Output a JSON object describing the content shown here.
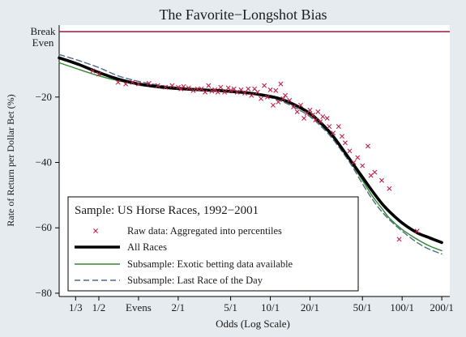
{
  "chart_data": {
    "type": "line",
    "title": "The Favorite−Longshot Bias",
    "xlabel": "Odds (Log Scale)",
    "ylabel": "Rate of Return per Dollar Bet (%)",
    "x_scale": "log",
    "xlim": [
      0.25,
      230
    ],
    "ylim": [
      -81,
      2
    ],
    "x_ticks": [
      {
        "label": "1/3",
        "value": 0.3333
      },
      {
        "label": "1/2",
        "value": 0.5
      },
      {
        "label": "Evens",
        "value": 1
      },
      {
        "label": "2/1",
        "value": 2
      },
      {
        "label": "5/1",
        "value": 5
      },
      {
        "label": "10/1",
        "value": 10
      },
      {
        "label": "20/1",
        "value": 20
      },
      {
        "label": "50/1",
        "value": 50
      },
      {
        "label": "100/1",
        "value": 100
      },
      {
        "label": "200/1",
        "value": 200
      }
    ],
    "y_ticks": [
      {
        "label": "−20",
        "value": -20
      },
      {
        "label": "−40",
        "value": -40
      },
      {
        "label": "−60",
        "value": -60
      },
      {
        "label": "−80",
        "value": -80
      }
    ],
    "reference_line": {
      "value": 0,
      "label_line1": "Break",
      "label_line2": "Even",
      "color": "#a0284f"
    },
    "grid": false,
    "legend": {
      "placement": "bottom-left",
      "title": "Sample: US Horse Races, 1992−2001",
      "entries": [
        {
          "label": "Raw data: Aggregated into percentiles",
          "style": "marker-x",
          "color": "#c0234b"
        },
        {
          "label": "All Races",
          "style": "thick-line",
          "color": "#000000"
        },
        {
          "label": "Subsample: Exotic betting data available",
          "style": "line",
          "color": "#2f8a2f"
        },
        {
          "label": "Subsample: Last Race of the Day",
          "style": "dashed-line",
          "color": "#4c6a8a"
        }
      ]
    },
    "series": [
      {
        "name": "All Races",
        "style": "thick-line",
        "color": "#000000",
        "x": [
          0.25,
          0.35,
          0.5,
          0.7,
          1,
          1.5,
          2,
          3,
          4,
          5,
          7,
          10,
          12,
          15,
          20,
          25,
          30,
          40,
          50,
          60,
          70,
          80,
          100,
          130,
          160,
          200
        ],
        "y": [
          -8,
          -10,
          -12.5,
          -14.5,
          -16,
          -17,
          -17.4,
          -17.8,
          -18,
          -18.3,
          -18.8,
          -19.8,
          -20.6,
          -22.2,
          -25,
          -28.5,
          -32,
          -39,
          -44.5,
          -49,
          -52.5,
          -55,
          -58.5,
          -61.5,
          -63,
          -64.5
        ]
      },
      {
        "name": "Subsample: Exotic betting data available",
        "style": "line",
        "color": "#2f8a2f",
        "x": [
          0.25,
          0.35,
          0.5,
          0.7,
          1,
          1.5,
          2,
          3,
          4,
          5,
          7,
          10,
          12,
          15,
          20,
          25,
          30,
          40,
          50,
          60,
          70,
          80,
          100,
          130,
          160,
          200
        ],
        "y": [
          -9.5,
          -11.5,
          -13.5,
          -15,
          -16.2,
          -17,
          -17.3,
          -17.6,
          -17.8,
          -18.1,
          -18.6,
          -19.8,
          -20.8,
          -22.5,
          -25.5,
          -29,
          -32.5,
          -39.5,
          -45.5,
          -50.5,
          -54,
          -57,
          -60.5,
          -63.5,
          -65.5,
          -67
        ]
      },
      {
        "name": "Subsample: Last Race of the Day",
        "style": "dashed-line",
        "color": "#4c6a8a",
        "x": [
          0.25,
          0.35,
          0.5,
          0.7,
          1,
          1.5,
          2,
          3,
          4,
          5,
          7,
          10,
          12,
          15,
          20,
          25,
          30,
          40,
          50,
          60,
          70,
          80,
          100,
          130,
          160,
          200
        ],
        "y": [
          -7,
          -8.8,
          -11,
          -13.5,
          -15.2,
          -16.5,
          -17,
          -17.6,
          -17.9,
          -18.3,
          -19,
          -20.2,
          -21.2,
          -23,
          -26,
          -29.5,
          -33,
          -40,
          -46.5,
          -51.5,
          -55,
          -57.5,
          -61,
          -64.5,
          -66.5,
          -68
        ]
      },
      {
        "name": "Raw data: Aggregated into percentiles",
        "style": "marker-x",
        "color": "#c0234b",
        "points": [
          [
            0.45,
            -12
          ],
          [
            0.5,
            -13
          ],
          [
            0.7,
            -15.5
          ],
          [
            0.8,
            -16
          ],
          [
            0.9,
            -15.5
          ],
          [
            1.0,
            -16
          ],
          [
            1.2,
            -15.8
          ],
          [
            1.4,
            -16.5
          ],
          [
            1.6,
            -17
          ],
          [
            1.8,
            -16.5
          ],
          [
            2.0,
            -17
          ],
          [
            2.1,
            -17.5
          ],
          [
            2.2,
            -16.8
          ],
          [
            2.4,
            -17.2
          ],
          [
            2.6,
            -18
          ],
          [
            2.8,
            -17.5
          ],
          [
            3.0,
            -17.5
          ],
          [
            3.2,
            -18.5
          ],
          [
            3.4,
            -16.5
          ],
          [
            3.6,
            -18.2
          ],
          [
            3.8,
            -17.8
          ],
          [
            4.0,
            -18.5
          ],
          [
            4.2,
            -17
          ],
          [
            4.5,
            -18.5
          ],
          [
            4.8,
            -17.2
          ],
          [
            5.0,
            -18
          ],
          [
            5.3,
            -17.5
          ],
          [
            5.6,
            -18.5
          ],
          [
            6.0,
            -17.8
          ],
          [
            6.4,
            -18.8
          ],
          [
            6.8,
            -17.5
          ],
          [
            7.2,
            -19.5
          ],
          [
            7.6,
            -17.5
          ],
          [
            8.0,
            -18.5
          ],
          [
            8.5,
            -20.5
          ],
          [
            9.0,
            -16.5
          ],
          [
            9.5,
            -20
          ],
          [
            10.0,
            -17.8
          ],
          [
            10.5,
            -22.5
          ],
          [
            11.0,
            -18
          ],
          [
            11.5,
            -21.5
          ],
          [
            12.0,
            -16
          ],
          [
            12.5,
            -20.5
          ],
          [
            13.0,
            -19.5
          ],
          [
            14.0,
            -21
          ],
          [
            15.0,
            -23
          ],
          [
            16.0,
            -24.5
          ],
          [
            17.0,
            -22.5
          ],
          [
            18.0,
            -26.5
          ],
          [
            19.0,
            -25
          ],
          [
            20.0,
            -24
          ],
          [
            21.0,
            -25.5
          ],
          [
            22.0,
            -27
          ],
          [
            23.0,
            -24.5
          ],
          [
            24.0,
            -27.5
          ],
          [
            25.0,
            -26
          ],
          [
            27.0,
            -26.5
          ],
          [
            28.0,
            -29
          ],
          [
            30.0,
            -31
          ],
          [
            33.0,
            -29
          ],
          [
            35.0,
            -32
          ],
          [
            37.0,
            -34
          ],
          [
            40.0,
            -36.5
          ],
          [
            43.0,
            -40
          ],
          [
            46.0,
            -38.5
          ],
          [
            50.0,
            -41
          ],
          [
            55.0,
            -35
          ],
          [
            58.0,
            -44
          ],
          [
            62.0,
            -43
          ],
          [
            70.0,
            -45.5
          ],
          [
            80.0,
            -48
          ],
          [
            95.0,
            -63.5
          ],
          [
            130.0,
            -61
          ]
        ]
      }
    ]
  }
}
